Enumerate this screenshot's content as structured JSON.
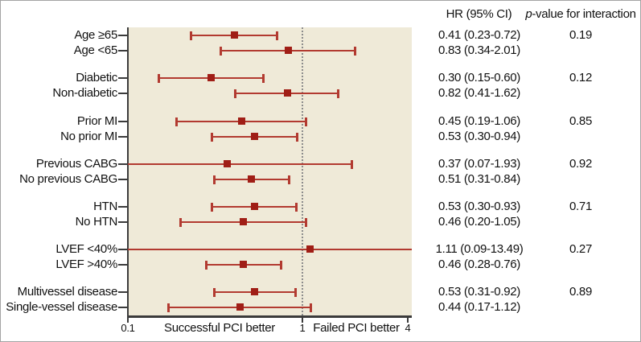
{
  "header": {
    "hr_column": "HR (95% CI)",
    "p_italic": "p",
    "p_rest": "-value for interaction"
  },
  "axis": {
    "left_label": "Successful PCI better",
    "right_label": "Failed PCI better"
  },
  "colors": {
    "plot_background": "#efead8",
    "ci_line": "#b23a30",
    "marker": "#a01e16",
    "axis": "#3b3b3b",
    "reference_line": "#8c8c8c",
    "text": "#111111"
  },
  "chart_data": {
    "type": "forest",
    "x_scale": "log",
    "xlim": [
      0.1,
      4
    ],
    "reference_line": 1,
    "x_ticks": [
      {
        "value": 0.1,
        "label": "0.1"
      },
      {
        "value": 1,
        "label": "1"
      },
      {
        "value": 4,
        "label": "4"
      }
    ],
    "direction_labels": {
      "left_of_1": "Successful PCI better",
      "right_of_1": "Failed PCI better"
    },
    "columns": {
      "hr_header": "HR (95% CI)",
      "p_header": "p-value for interaction"
    },
    "groups": [
      {
        "p_interaction": "0.19",
        "rows": [
          {
            "label": "Age ≥65",
            "hr": 0.41,
            "lo": 0.23,
            "hi": 0.72,
            "ci_text": "0.41 (0.23-0.72)"
          },
          {
            "label": "Age <65",
            "hr": 0.83,
            "lo": 0.34,
            "hi": 2.01,
            "ci_text": "0.83 (0.34-2.01)"
          }
        ]
      },
      {
        "p_interaction": "0.12",
        "rows": [
          {
            "label": "Diabetic",
            "hr": 0.3,
            "lo": 0.15,
            "hi": 0.6,
            "ci_text": "0.30 (0.15-0.60)"
          },
          {
            "label": "Non-diabetic",
            "hr": 0.82,
            "lo": 0.41,
            "hi": 1.62,
            "ci_text": "0.82 (0.41-1.62)"
          }
        ]
      },
      {
        "p_interaction": "0.85",
        "rows": [
          {
            "label": "Prior MI",
            "hr": 0.45,
            "lo": 0.19,
            "hi": 1.06,
            "ci_text": "0.45 (0.19-1.06)"
          },
          {
            "label": "No prior MI",
            "hr": 0.53,
            "lo": 0.3,
            "hi": 0.94,
            "ci_text": "0.53 (0.30-0.94)"
          }
        ]
      },
      {
        "p_interaction": "0.92",
        "rows": [
          {
            "label": "Previous CABG",
            "hr": 0.37,
            "lo": 0.07,
            "hi": 1.93,
            "ci_text": "0.37 (0.07-1.93)"
          },
          {
            "label": "No previous CABG",
            "hr": 0.51,
            "lo": 0.31,
            "hi": 0.84,
            "ci_text": "0.51 (0.31-0.84)"
          }
        ]
      },
      {
        "p_interaction": "0.71",
        "rows": [
          {
            "label": "HTN",
            "hr": 0.53,
            "lo": 0.3,
            "hi": 0.93,
            "ci_text": "0.53 (0.30-0.93)"
          },
          {
            "label": "No HTN",
            "hr": 0.46,
            "lo": 0.2,
            "hi": 1.05,
            "ci_text": "0.46 (0.20-1.05)"
          }
        ]
      },
      {
        "p_interaction": "0.27",
        "rows": [
          {
            "label": "LVEF <40%",
            "hr": 1.11,
            "lo": 0.09,
            "hi": 13.49,
            "ci_text": "1.11 (0.09-13.49)"
          },
          {
            "label": "LVEF >40%",
            "hr": 0.46,
            "lo": 0.28,
            "hi": 0.76,
            "ci_text": "0.46 (0.28-0.76)"
          }
        ]
      },
      {
        "p_interaction": "0.89",
        "rows": [
          {
            "label": "Multivessel disease",
            "hr": 0.53,
            "lo": 0.31,
            "hi": 0.92,
            "ci_text": "0.53 (0.31-0.92)"
          },
          {
            "label": "Single-vessel disease",
            "hr": 0.44,
            "lo": 0.17,
            "hi": 1.12,
            "ci_text": "0.44 (0.17-1.12)"
          }
        ]
      }
    ]
  }
}
